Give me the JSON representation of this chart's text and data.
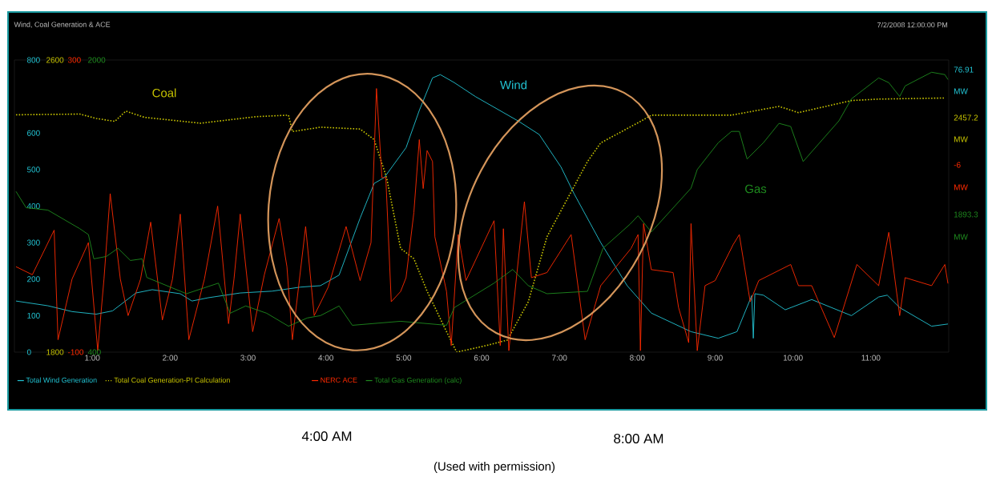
{
  "chart_data": [
    {
      "type": "line",
      "title": "Wind, Coal Generation & ACE",
      "xlim": [
        0,
        12
      ],
      "xticks": [
        {
          "value": 1,
          "label": "1:00"
        },
        {
          "value": 2,
          "label": "2:00"
        },
        {
          "value": 3,
          "label": "3:00"
        },
        {
          "value": 4,
          "label": "4:00"
        },
        {
          "value": 5,
          "label": "5:00"
        },
        {
          "value": 6,
          "label": "6:00"
        },
        {
          "value": 7,
          "label": "7:00"
        },
        {
          "value": 8,
          "label": "8:00"
        },
        {
          "value": 9,
          "label": "9:00"
        },
        {
          "value": 10,
          "label": "10:00"
        },
        {
          "value": 11,
          "label": "11:00"
        }
      ],
      "ylim": [
        0,
        800
      ],
      "yticks": [
        0,
        100,
        200,
        300,
        400,
        500,
        600,
        800
      ],
      "y2lim": [
        1800,
        2600
      ],
      "y2ticks": [
        1800,
        2600
      ],
      "legend": "bottom",
      "series": [
        {
          "name": "Total Wind Generation",
          "color": "#22c4d4",
          "line_style": "solid",
          "x": [
            0.02,
            0.43,
            0.74,
            1.05,
            1.26,
            1.56,
            1.77,
            2.13,
            2.28,
            2.49,
            2.9,
            3.31,
            3.67,
            3.93,
            4.17,
            4.44,
            4.62,
            4.75,
            5.03,
            5.2,
            5.37,
            5.47,
            5.65,
            5.92,
            6.47,
            6.74,
            7.02,
            7.19,
            7.53,
            7.87,
            8.18,
            8.69,
            9.04,
            9.28,
            9.47,
            9.49,
            9.51,
            9.62,
            9.9,
            10.24,
            10.75,
            11.1,
            11.21,
            11.37,
            11.78,
            11.99
          ],
          "values": [
            140,
            127,
            111,
            104,
            113,
            162,
            171,
            160,
            140,
            149,
            162,
            167,
            178,
            182,
            211,
            367,
            462,
            478,
            560,
            662,
            751,
            760,
            738,
            700,
            633,
            596,
            507,
            433,
            300,
            182,
            107,
            56,
            38,
            56,
            155,
            38,
            160,
            156,
            116,
            144,
            100,
            151,
            156,
            122,
            71,
            77
          ]
        },
        {
          "name": "Total Coal Generation-PI Calculation",
          "color": "#c8c400",
          "line_style": "dotted",
          "axis": "y2",
          "x": [
            0.02,
            0.84,
            1.05,
            1.29,
            1.43,
            1.67,
            2.39,
            3.11,
            3.52,
            3.57,
            3.93,
            4.44,
            4.62,
            4.78,
            4.96,
            5.13,
            5.3,
            5.55,
            5.68,
            6.06,
            6.33,
            6.6,
            6.84,
            7.36,
            7.53,
            8.05,
            8.18,
            9.21,
            9.82,
            10.07,
            10.75,
            11.1,
            11.95
          ],
          "values": [
            2450,
            2452,
            2440,
            2432,
            2460,
            2443,
            2427,
            2445,
            2449,
            2404,
            2416,
            2411,
            2382,
            2278,
            2084,
            2056,
            1967,
            1856,
            1800,
            1818,
            1833,
            1938,
            2116,
            2322,
            2373,
            2433,
            2449,
            2449,
            2473,
            2456,
            2489,
            2493,
            2496
          ]
        }
      ],
      "annotations": [
        "7/2/2008 12:00:00 PM",
        "Coal",
        "Wind",
        "Gas",
        "76.91",
        "MW",
        "2457.2",
        "MW",
        "-6",
        "MW",
        "1893.3",
        "MW",
        "4:00 AM",
        "8:00 AM",
        "(Used with permission)"
      ]
    },
    {
      "type": "line",
      "xlim": [
        0,
        12
      ],
      "tick_labels": "y",
      "ylim": [
        -100,
        300
      ],
      "yticks": [
        -100,
        300
      ],
      "y2lim": [
        400,
        2000
      ],
      "y2ticks": [
        400,
        2000
      ],
      "legend": "bottom",
      "series": [
        {
          "name": "NERC ACE",
          "color": "#ff2a00",
          "line_style": "solid",
          "x": [
            0.02,
            0.23,
            0.51,
            0.56,
            0.74,
            0.95,
            1.07,
            1.15,
            1.23,
            1.36,
            1.46,
            1.62,
            1.75,
            1.9,
            2.03,
            2.13,
            2.24,
            2.44,
            2.61,
            2.75,
            2.82,
            2.9,
            3.06,
            3.21,
            3.4,
            3.5,
            3.57,
            3.74,
            3.85,
            4.03,
            4.26,
            4.44,
            4.58,
            4.65,
            4.72,
            4.77,
            4.84,
            4.96,
            5.03,
            5.13,
            5.2,
            5.25,
            5.3,
            5.37,
            5.4,
            5.55,
            5.61,
            5.7,
            5.8,
            6.16,
            6.24,
            6.28,
            6.35,
            6.55,
            6.64,
            6.84,
            7.15,
            7.33,
            7.53,
            7.92,
            8.01,
            8.04,
            8.08,
            8.18,
            8.46,
            8.53,
            8.66,
            8.69,
            8.77,
            8.87,
            9.0,
            9.23,
            9.31,
            9.45,
            9.56,
            9.97,
            10.07,
            10.24,
            10.53,
            10.82,
            11.1,
            11.23,
            11.37,
            11.44,
            11.78,
            11.95,
            11.99
          ],
          "values": [
            17,
            6,
            67,
            -83,
            0,
            50,
            -98,
            0,
            117,
            0,
            -50,
            0,
            78,
            -56,
            0,
            89,
            -83,
            0,
            100,
            -61,
            0,
            89,
            -72,
            6,
            83,
            17,
            -83,
            72,
            -50,
            -11,
            72,
            -2,
            50,
            261,
            139,
            139,
            -31,
            -17,
            2,
            91,
            191,
            124,
            176,
            161,
            58,
            -17,
            -91,
            61,
            -2,
            80,
            -91,
            69,
            -98,
            106,
            2,
            9,
            61,
            -83,
            -9,
            42,
            61,
            -98,
            76,
            13,
            9,
            -39,
            -87,
            76,
            -98,
            -9,
            -2,
            47,
            61,
            -31,
            -2,
            20,
            -9,
            -9,
            -80,
            20,
            -9,
            64,
            -50,
            2,
            -9,
            20,
            -6
          ]
        },
        {
          "name": "Total Gas Generation (calc)",
          "color": "#1e8a1e",
          "line_style": "solid",
          "axis": "y2",
          "x": [
            0.02,
            0.15,
            0.43,
            0.84,
            0.95,
            1.02,
            1.18,
            1.33,
            1.49,
            1.64,
            1.7,
            2.21,
            2.62,
            2.77,
            2.97,
            3.24,
            3.52,
            3.76,
            3.93,
            4.17,
            4.34,
            4.96,
            5.55,
            5.65,
            6.16,
            6.4,
            6.6,
            6.84,
            7.36,
            7.56,
            7.91,
            8.01,
            8.18,
            8.69,
            8.77,
            9.04,
            9.21,
            9.31,
            9.41,
            9.62,
            9.82,
            9.97,
            10.13,
            10.59,
            10.75,
            11.1,
            11.23,
            11.37,
            11.44,
            11.78,
            11.95,
            11.99
          ],
          "values": [
            1280,
            1191,
            1178,
            1076,
            1044,
            911,
            924,
            969,
            902,
            911,
            809,
            720,
            778,
            613,
            653,
            613,
            542,
            587,
            600,
            653,
            547,
            569,
            547,
            644,
            778,
            853,
            764,
            720,
            733,
            969,
            1102,
            1147,
            1058,
            1298,
            1400,
            1547,
            1609,
            1609,
            1458,
            1547,
            1653,
            1636,
            1444,
            1667,
            1787,
            1902,
            1876,
            1800,
            1858,
            1933,
            1920,
            1893
          ]
        }
      ]
    }
  ]
}
